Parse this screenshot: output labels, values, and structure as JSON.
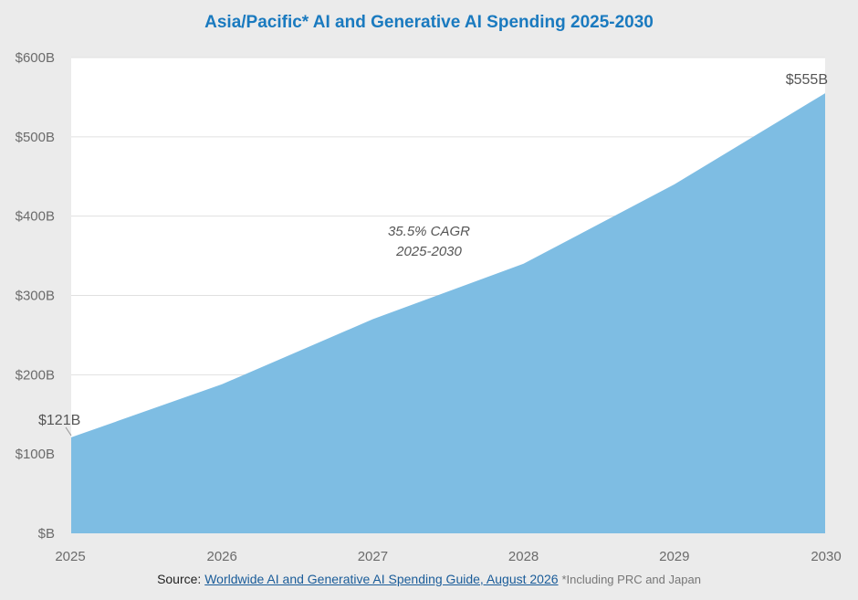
{
  "chart_data": {
    "type": "area",
    "title": "Asia/Pacific* AI and Generative AI Spending 2025-2030",
    "x": [
      "2025",
      "2026",
      "2027",
      "2028",
      "2029",
      "2030"
    ],
    "series": [
      {
        "values": [
          121,
          188,
          270,
          340,
          440,
          555
        ]
      }
    ],
    "ylim": [
      0,
      600
    ],
    "y_ticks": [
      0,
      100,
      200,
      300,
      400,
      500,
      600
    ],
    "y_tick_labels": [
      "$B",
      "$100B",
      "$200B",
      "$300B",
      "$400B",
      "$500B",
      "$600B"
    ],
    "grid": true,
    "fill_color": "#7ebde3",
    "title_color": "#1a7abf",
    "data_labels": [
      {
        "index": 0,
        "text": "$121B"
      },
      {
        "index": 5,
        "text": "$555B"
      }
    ],
    "annotation": {
      "line1": "35.5% CAGR",
      "line2": "2025-2030"
    }
  },
  "source": {
    "prefix": "Source:",
    "link_text": "Worldwide AI and Generative AI Spending Guide, August 2026",
    "note": "*Including PRC and Japan"
  }
}
